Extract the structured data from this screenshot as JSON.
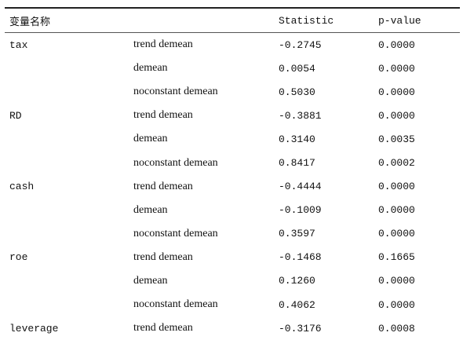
{
  "table": {
    "header": [
      "变量名称",
      null,
      "Statistic",
      "p-value"
    ],
    "rows": [
      [
        "tax",
        "trend demean",
        "-0.2745",
        "0.0000"
      ],
      [
        null,
        "demean",
        "0.0054",
        "0.0000"
      ],
      [
        null,
        "noconstant demean",
        "0.5030",
        "0.0000"
      ],
      [
        "RD",
        "trend demean",
        "-0.3881",
        "0.0000"
      ],
      [
        null,
        "demean",
        "0.3140",
        "0.0035"
      ],
      [
        null,
        "noconstant demean",
        "0.8417",
        "0.0002"
      ],
      [
        "cash",
        "trend demean",
        "-0.4444",
        "0.0000"
      ],
      [
        null,
        "demean",
        "-0.1009",
        "0.0000"
      ],
      [
        null,
        "noconstant demean",
        "0.3597",
        "0.0000"
      ],
      [
        "roe",
        "trend demean",
        "-0.1468",
        "0.1665"
      ],
      [
        null,
        "demean",
        "0.1260",
        "0.0000"
      ],
      [
        null,
        "noconstant demean",
        "0.4062",
        "0.0000"
      ],
      [
        "leverage",
        "trend demean",
        "-0.3176",
        "0.0008"
      ]
    ]
  }
}
